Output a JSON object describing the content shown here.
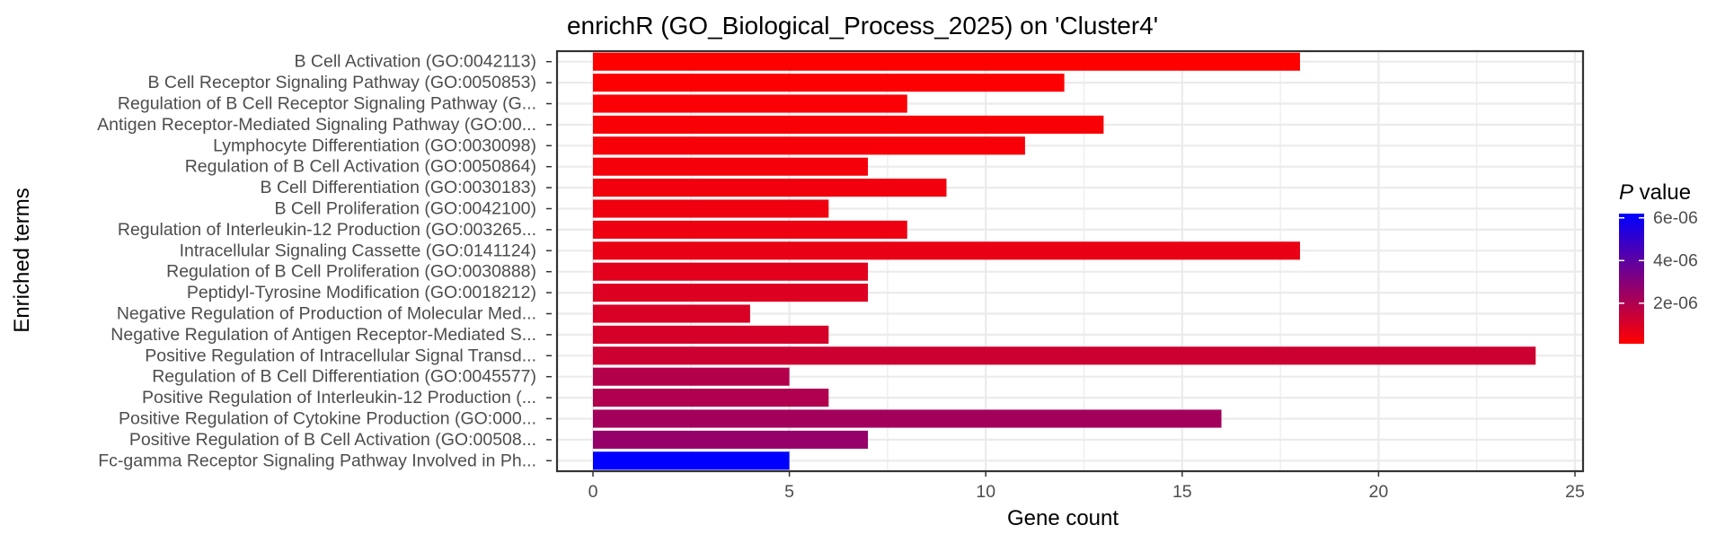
{
  "chart_data": {
    "type": "bar",
    "orientation": "horizontal",
    "title": "enrichR (GO_Biological_Process_2025) on 'Cluster4'",
    "xlabel": "Gene count",
    "ylabel": "Enriched terms",
    "xlim": [
      -0.25,
      25.2
    ],
    "x_ticks": [
      0,
      5,
      10,
      15,
      20,
      25
    ],
    "grid": true,
    "legend": {
      "title_italic": "P",
      "title_rest": " value",
      "placement": "right",
      "ticks": [
        "6e-06",
        "4e-06",
        "2e-06"
      ],
      "tick_values": [
        6e-06,
        4e-06,
        2e-06
      ],
      "range": [
        1e-07,
        6.2e-06
      ],
      "colors": {
        "low": "#ff0000",
        "high": "#0000ff"
      }
    },
    "categories": [
      "B Cell Activation (GO:0042113)",
      "B Cell Receptor Signaling Pathway (GO:0050853)",
      "Regulation of B Cell Receptor Signaling Pathway (G...",
      "Antigen Receptor-Mediated Signaling Pathway (GO:00...",
      "Lymphocyte Differentiation (GO:0030098)",
      "Regulation of B Cell Activation (GO:0050864)",
      "B Cell Differentiation (GO:0030183)",
      "B Cell Proliferation (GO:0042100)",
      "Regulation of Interleukin-12 Production (GO:003265...",
      "Intracellular Signaling Cassette (GO:0141124)",
      "Regulation of B Cell Proliferation (GO:0030888)",
      "Peptidyl-Tyrosine Modification (GO:0018212)",
      "Negative Regulation of Production of Molecular Med...",
      "Negative Regulation of Antigen Receptor-Mediated S...",
      "Positive Regulation of Intracellular Signal Transd...",
      "Regulation of B Cell Differentiation (GO:0045577)",
      "Positive Regulation of Interleukin-12 Production (...",
      "Positive Regulation of Cytokine Production (GO:000...",
      "Positive Regulation of B Cell Activation (GO:00508...",
      "Fc-gamma Receptor Signaling Pathway Involved in Ph..."
    ],
    "values": [
      18,
      12,
      8,
      13,
      11,
      7,
      9,
      6,
      8,
      18,
      7,
      7,
      4,
      6,
      24,
      5,
      6,
      16,
      7,
      5
    ],
    "p_values": [
      1e-07,
      1.5e-07,
      2e-07,
      2.5e-07,
      3e-07,
      3.5e-07,
      4e-07,
      4.5e-07,
      5e-07,
      6e-07,
      8e-07,
      9e-07,
      1e-06,
      1.1e-06,
      1.3e-06,
      1.9e-06,
      2e-06,
      2.3e-06,
      2.6e-06,
      6.2e-06
    ]
  }
}
